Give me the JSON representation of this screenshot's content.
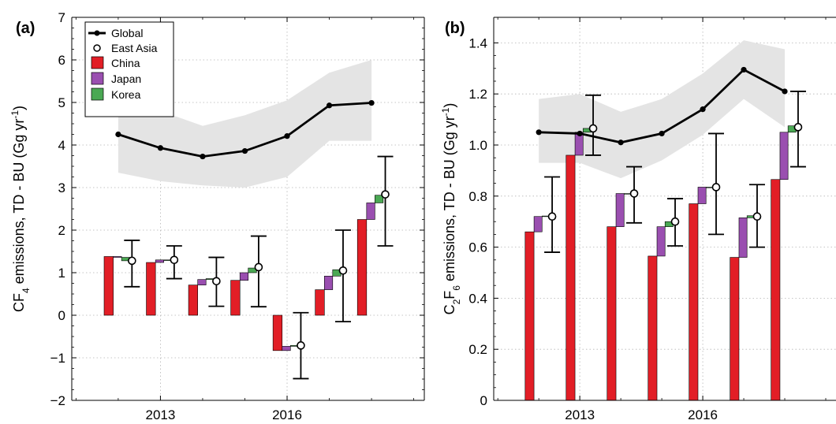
{
  "chart_data": [
    {
      "type": "bar",
      "panel_label": "(b)",
      "ylabel_html": "C<tspan baseline-shift='sub' font-size='12'>2</tspan>F<tspan baseline-shift='sub' font-size='12'>6</tspan> emissions, TD - BU (Gg yr<tspan baseline-shift='super' font-size='12'>-1</tspan>)",
      "ylabel_text": "C2F6 emissions, TD - BU (Gg yr-1)",
      "ylim": [
        0,
        1.5
      ],
      "xlim": [
        2010.9,
        2019.25
      ],
      "yticks": [
        0,
        0.2,
        0.4,
        0.6,
        0.8,
        1.0,
        1.2,
        1.4
      ],
      "ytick_labels": [
        "0",
        "0.2",
        "0.4",
        "0.6",
        "0.8",
        "1.0",
        "1.2",
        "1.4"
      ],
      "xticks": [
        2013,
        2016
      ],
      "xtick_labels": [
        "2013",
        "2016"
      ],
      "grid": true,
      "x": [
        2012,
        2013,
        2014,
        2015,
        2016,
        2017,
        2018
      ],
      "global": {
        "values": [
          1.05,
          1.045,
          1.01,
          1.045,
          1.14,
          1.295,
          1.21
        ],
        "lower": [
          0.93,
          0.93,
          0.87,
          0.94,
          1.04,
          1.18,
          1.07
        ],
        "upper": [
          1.18,
          1.2,
          1.13,
          1.18,
          1.28,
          1.41,
          1.375
        ]
      },
      "east_asia": {
        "values": [
          0.72,
          1.065,
          0.81,
          0.7,
          0.835,
          0.72,
          1.07
        ],
        "lower": [
          0.58,
          0.96,
          0.695,
          0.605,
          0.65,
          0.6,
          0.915
        ],
        "upper": [
          0.875,
          1.195,
          0.915,
          0.79,
          1.045,
          0.845,
          1.21
        ]
      },
      "china": [
        0.66,
        0.96,
        0.68,
        0.565,
        0.77,
        0.56,
        0.865
      ],
      "japan": [
        0.06,
        0.09,
        0.13,
        0.115,
        0.065,
        0.155,
        0.185
      ],
      "korea": [
        0.002,
        0.015,
        0.0,
        0.02,
        0.0,
        0.008,
        0.025
      ]
    },
    {
      "type": "bar",
      "panel_label": "(a)",
      "ylabel_html": "CF<tspan baseline-shift='sub' font-size='12'>4</tspan> emissions, TD - BU (Gg yr<tspan baseline-shift='super' font-size='12'>-1</tspan>)",
      "ylabel_text": "CF4 emissions, TD - BU (Gg yr-1)",
      "ylim": [
        -2,
        7
      ],
      "xlim": [
        2010.9,
        2019.25
      ],
      "yticks": [
        -2,
        -1,
        0,
        1,
        2,
        3,
        4,
        5,
        6,
        7
      ],
      "ytick_labels": [
        "−2",
        "−1",
        "0",
        "1",
        "2",
        "3",
        "4",
        "5",
        "6",
        "7"
      ],
      "xticks": [
        2013,
        2016
      ],
      "xtick_labels": [
        "2013",
        "2016"
      ],
      "grid": true,
      "legend_position": "top-left",
      "x": [
        2012,
        2013,
        2014,
        2015,
        2016,
        2017,
        2018
      ],
      "global": {
        "values": [
          4.25,
          3.93,
          3.73,
          3.86,
          4.21,
          4.93,
          4.99
        ],
        "lower": [
          3.35,
          3.15,
          3.05,
          3.0,
          3.25,
          4.1,
          4.1
        ],
        "upper": [
          5.05,
          4.8,
          4.45,
          4.7,
          5.05,
          5.7,
          6.0
        ]
      },
      "east_asia": {
        "values": [
          1.28,
          1.3,
          0.8,
          1.13,
          -0.71,
          1.05,
          2.84
        ],
        "lower": [
          0.67,
          0.86,
          0.21,
          0.2,
          -1.49,
          -0.15,
          1.63
        ],
        "upper": [
          1.76,
          1.63,
          1.36,
          1.86,
          0.06,
          2.0,
          3.73
        ]
      },
      "china": [
        1.38,
        1.24,
        0.71,
        0.82,
        -0.83,
        0.6,
        2.25
      ],
      "japan": [
        -0.02,
        0.06,
        0.13,
        0.18,
        0.1,
        0.32,
        0.39
      ],
      "korea": [
        -0.08,
        0.0,
        0.02,
        0.11,
        0.02,
        0.15,
        0.18
      ]
    }
  ],
  "legend": {
    "global": "Global",
    "east_asia": "East Asia",
    "china": "China",
    "japan": "Japan",
    "korea": "Korea"
  },
  "colors": {
    "china": "#e21e26",
    "japan": "#9a4fb0",
    "korea": "#4aa853",
    "band": "#e4e4e4",
    "grid": "#b4b4b4",
    "line": "#000000"
  }
}
